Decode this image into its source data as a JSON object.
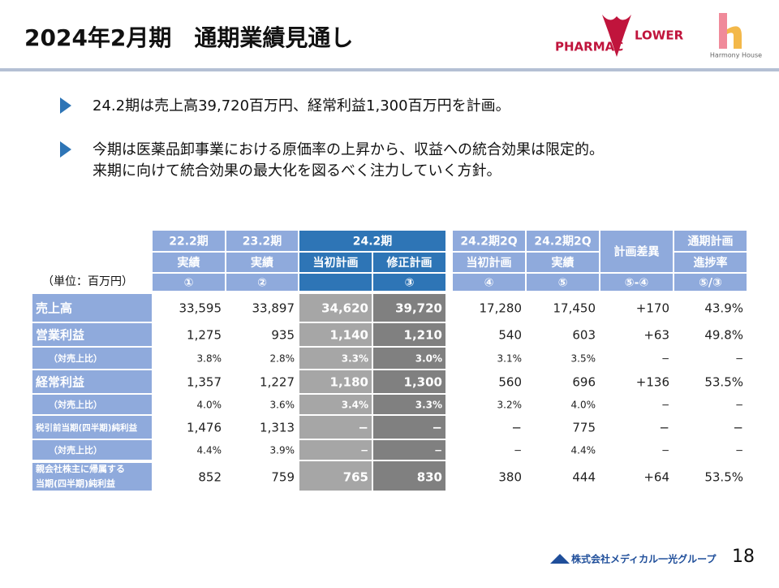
{
  "header": {
    "title": "2024年2月期　通期業績見通し",
    "logo_left": [
      "PHARMAC",
      "LOWER"
    ],
    "logo_right": "Harmony House"
  },
  "bullets": [
    [
      "24.2期は売上高39,720百万円、経常利益1,300百万円を計画。"
    ],
    [
      "今期は医薬品卸事業における原価率の上昇から、収益への統合効果は限定的。",
      "来期に向けて統合効果の最大化を図るべく注力していく方針。"
    ]
  ],
  "table": {
    "unit": "（単位：百万円）",
    "columns": [
      {
        "label": "22.2期",
        "sub": "実績",
        "no": "①"
      },
      {
        "label": "23.2期",
        "sub": "実績",
        "no": "②"
      },
      {
        "group": "24.2期",
        "items": [
          {
            "sub": "当初計画"
          },
          {
            "sub": "修正計画",
            "no": "③"
          }
        ]
      },
      {
        "label": "24.2期2Q",
        "sub": "当初計画",
        "no": "④"
      },
      {
        "label": "24.2期2Q",
        "sub": "実績",
        "no": "⑤"
      },
      {
        "label": "計画差異",
        "no": "⑤-④"
      },
      {
        "label": "通期計画",
        "sub": "進捗率",
        "no": "⑤/③"
      }
    ],
    "rows": [
      {
        "label": "売上高",
        "cells": [
          "33,595",
          "33,897",
          "34,620",
          "39,720",
          "17,280",
          "17,450",
          "+170",
          "43.9%"
        ]
      },
      {
        "label": "営業利益",
        "cells": [
          "1,275",
          "935",
          "1,140",
          "1,210",
          "540",
          "603",
          "+63",
          "49.8%"
        ]
      },
      {
        "label": "（対売上比）",
        "cells": [
          "3.8%",
          "2.8%",
          "3.3%",
          "3.0%",
          "3.1%",
          "3.5%",
          "−",
          "−"
        ]
      },
      {
        "label": "経常利益",
        "cells": [
          "1,357",
          "1,227",
          "1,180",
          "1,300",
          "560",
          "696",
          "+136",
          "53.5%"
        ]
      },
      {
        "label": "（対売上比）",
        "cells": [
          "4.0%",
          "3.6%",
          "3.4%",
          "3.3%",
          "3.2%",
          "4.0%",
          "−",
          "−"
        ]
      },
      {
        "label": "税引前当期(四半期)純利益",
        "cells": [
          "1,476",
          "1,313",
          "−",
          "−",
          "−",
          "775",
          "−",
          "−"
        ]
      },
      {
        "label": "（対売上比）",
        "cells": [
          "4.4%",
          "3.9%",
          "−",
          "−",
          "−",
          "4.4%",
          "−",
          "−"
        ]
      },
      {
        "label": [
          "親会社株主に帰属する",
          "当期(四半期)純利益"
        ],
        "cells": [
          "852",
          "759",
          "765",
          "830",
          "380",
          "444",
          "+64",
          "53.5%"
        ]
      }
    ]
  },
  "footer": {
    "company": "株式会社メディカル一光グループ",
    "page": "18"
  }
}
